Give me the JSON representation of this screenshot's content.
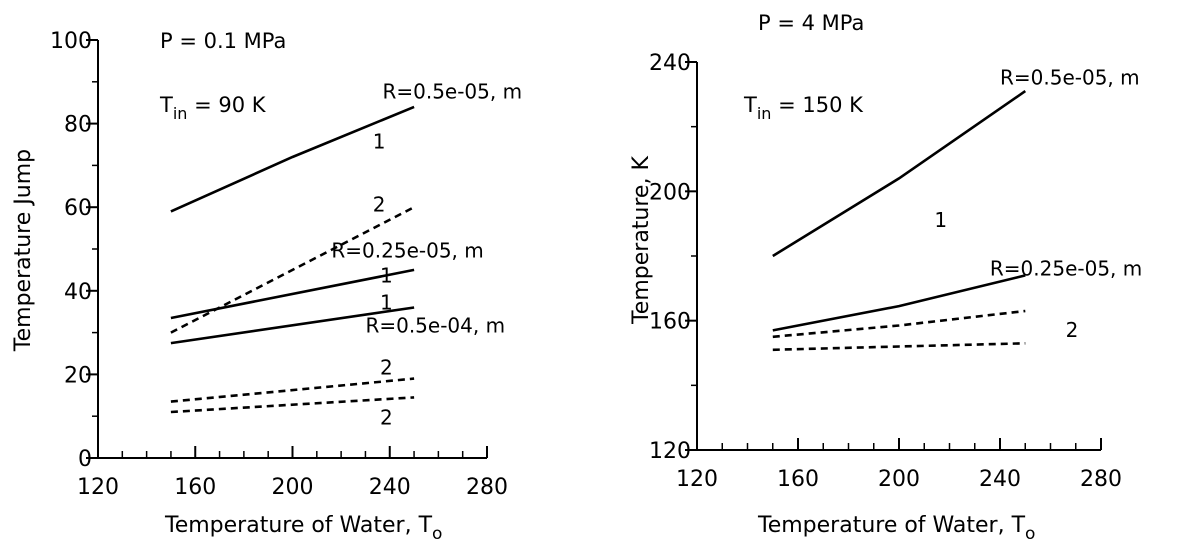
{
  "chart_data": [
    {
      "type": "line",
      "xlabel": "Temperature of Water, T",
      "xlabel_sub": "o",
      "ylabel": "Temperature Jump",
      "xlim": [
        120,
        280
      ],
      "ylim": [
        0,
        100
      ],
      "xticks": [
        120,
        160,
        200,
        240,
        280
      ],
      "yticks": [
        0,
        20,
        40,
        60,
        80,
        100
      ],
      "ytick_labels": [
        "0",
        "20",
        "40",
        "60",
        "80",
        "100"
      ],
      "annotations": {
        "pressure": "P = 0.1 MPa",
        "tin_main": "T",
        "tin_sub": "in",
        "tin_rest": " = 90 K"
      },
      "series": [
        {
          "x": [
            150,
            200,
            250
          ],
          "y": [
            59,
            72,
            84
          ],
          "style": "solid"
        },
        {
          "x": [
            150,
            250
          ],
          "y": [
            33.5,
            45
          ],
          "style": "solid"
        },
        {
          "x": [
            150,
            250
          ],
          "y": [
            27.5,
            36
          ],
          "style": "solid"
        },
        {
          "x": [
            150,
            250
          ],
          "y": [
            30,
            60
          ],
          "style": "dashed"
        },
        {
          "x": [
            150,
            250
          ],
          "y": [
            13.5,
            19
          ],
          "style": "dashed"
        },
        {
          "x": [
            150,
            250
          ],
          "y": [
            11,
            14.5
          ],
          "style": "dashed"
        }
      ],
      "labels": [
        {
          "text": "R=0.5e-05, m",
          "x": 237,
          "y": 86
        },
        {
          "text": "1",
          "x": 233,
          "y": 74
        },
        {
          "text": "2",
          "x": 233,
          "y": 59
        },
        {
          "text": "R=0.25e-05, m",
          "x": 216,
          "y": 48
        },
        {
          "text": "1",
          "x": 236,
          "y": 42
        },
        {
          "text": "1",
          "x": 236,
          "y": 35.5
        },
        {
          "text": "R=0.5e-04, m",
          "x": 230,
          "y": 30
        },
        {
          "text": "2",
          "x": 236,
          "y": 20
        },
        {
          "text": "2",
          "x": 236,
          "y": 8
        }
      ]
    },
    {
      "type": "line",
      "xlabel": "Temperature of Water, T",
      "xlabel_sub": "o",
      "ylabel": "Temperature, K",
      "xlim": [
        120,
        280
      ],
      "ylim": [
        120,
        240
      ],
      "xticks": [
        120,
        160,
        200,
        240,
        280
      ],
      "yticks": [
        120,
        160,
        200,
        240
      ],
      "ytick_labels": [
        "120",
        "160",
        "200",
        "240"
      ],
      "annotations": {
        "pressure": "P = 4 MPa",
        "tin_main": "T",
        "tin_sub": "in",
        "tin_rest": " = 150 K"
      },
      "series": [
        {
          "x": [
            150,
            200,
            250
          ],
          "y": [
            180,
            204,
            231
          ],
          "style": "solid"
        },
        {
          "x": [
            150,
            200,
            250
          ],
          "y": [
            157,
            164.5,
            174
          ],
          "style": "solid"
        },
        {
          "x": [
            150,
            200,
            250
          ],
          "y": [
            155,
            158.5,
            163
          ],
          "style": "dashed"
        },
        {
          "x": [
            150,
            200,
            250
          ],
          "y": [
            151,
            152,
            153
          ],
          "style": "dashed"
        }
      ],
      "labels": [
        {
          "text": "R=0.5e-05, m",
          "x": 240,
          "y": 233
        },
        {
          "text": "1",
          "x": 214,
          "y": 189
        },
        {
          "text": "R=0.25e-05, m",
          "x": 236,
          "y": 174
        },
        {
          "text": "2",
          "x": 266,
          "y": 155
        }
      ]
    }
  ]
}
